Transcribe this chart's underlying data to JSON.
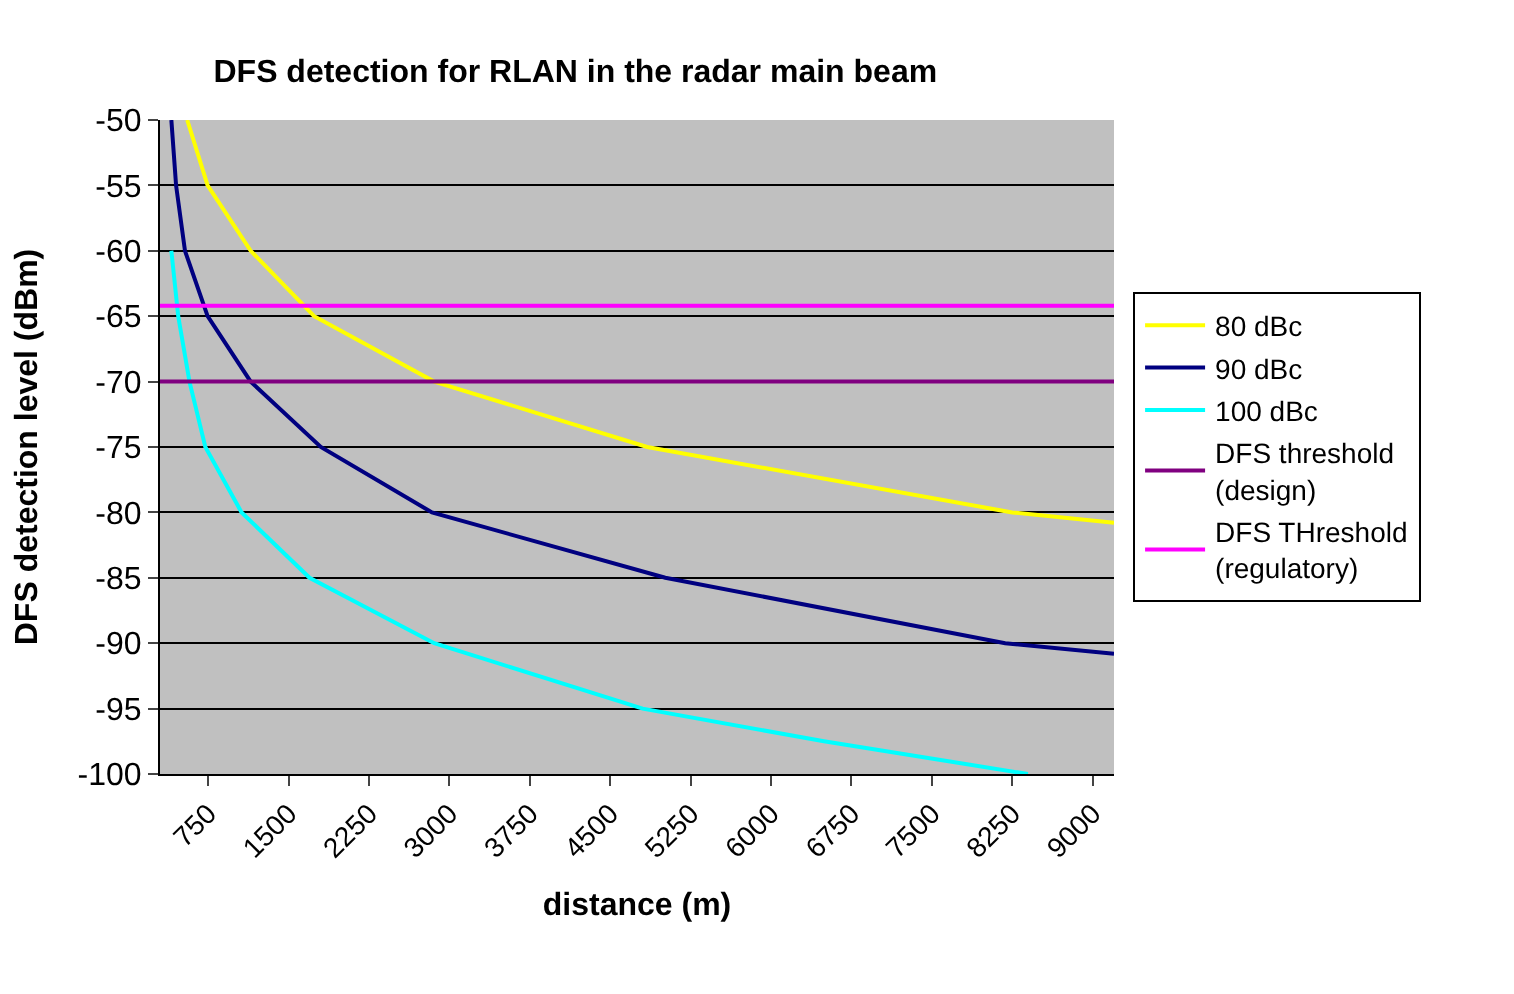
{
  "chart_data": {
    "type": "line",
    "title": "DFS detection for RLAN in the radar main beam",
    "xlabel": "distance (m)",
    "ylabel": "DFS detection level (dBm)",
    "xlim": [
      300,
      9200
    ],
    "xticks": [
      750,
      1500,
      2250,
      3000,
      3750,
      4500,
      5250,
      6000,
      6750,
      7500,
      8250,
      9000
    ],
    "ylim": [
      -100,
      -50
    ],
    "yticks": [
      -100,
      -95,
      -90,
      -85,
      -80,
      -75,
      -70,
      -65,
      -60,
      -55,
      -50
    ],
    "grid": "y",
    "legend": "right",
    "marker": "none",
    "line_style": "solid",
    "series": [
      {
        "name": "80 dBc",
        "color": "#ffff00",
        "x": [
          554,
          744,
          1146,
          1738,
          2858,
          4845,
          8250,
          9200
        ],
        "values": [
          -50,
          -55,
          -60,
          -65,
          -70,
          -75,
          -80,
          -80.8
        ]
      },
      {
        "name": "90 dBc",
        "color": "#000080",
        "x": [
          406,
          450,
          533,
          744,
          1146,
          1800,
          2837,
          5014,
          8185,
          9200
        ],
        "values": [
          -50,
          -55,
          -60,
          -65,
          -70,
          -75,
          -80,
          -85,
          -90,
          -90.8
        ]
      },
      {
        "name": "100 dBc",
        "color": "#00ffff",
        "x": [
          406,
          470,
          575,
          723,
          1061,
          1695,
          2858,
          4803,
          6494,
          8397
        ],
        "values": [
          -60,
          -65,
          -70,
          -75,
          -80,
          -85,
          -90,
          -95,
          -97.5,
          -100
        ]
      },
      {
        "name": "DFS threshold\n(design)",
        "color": "#800080",
        "x": [
          300,
          9200
        ],
        "values": [
          -70,
          -70
        ]
      },
      {
        "name": "DFS THreshold\n(regulatory)",
        "color": "#ff00ff",
        "x": [
          300,
          9200
        ],
        "values": [
          -64.2,
          -64.2
        ]
      }
    ]
  }
}
